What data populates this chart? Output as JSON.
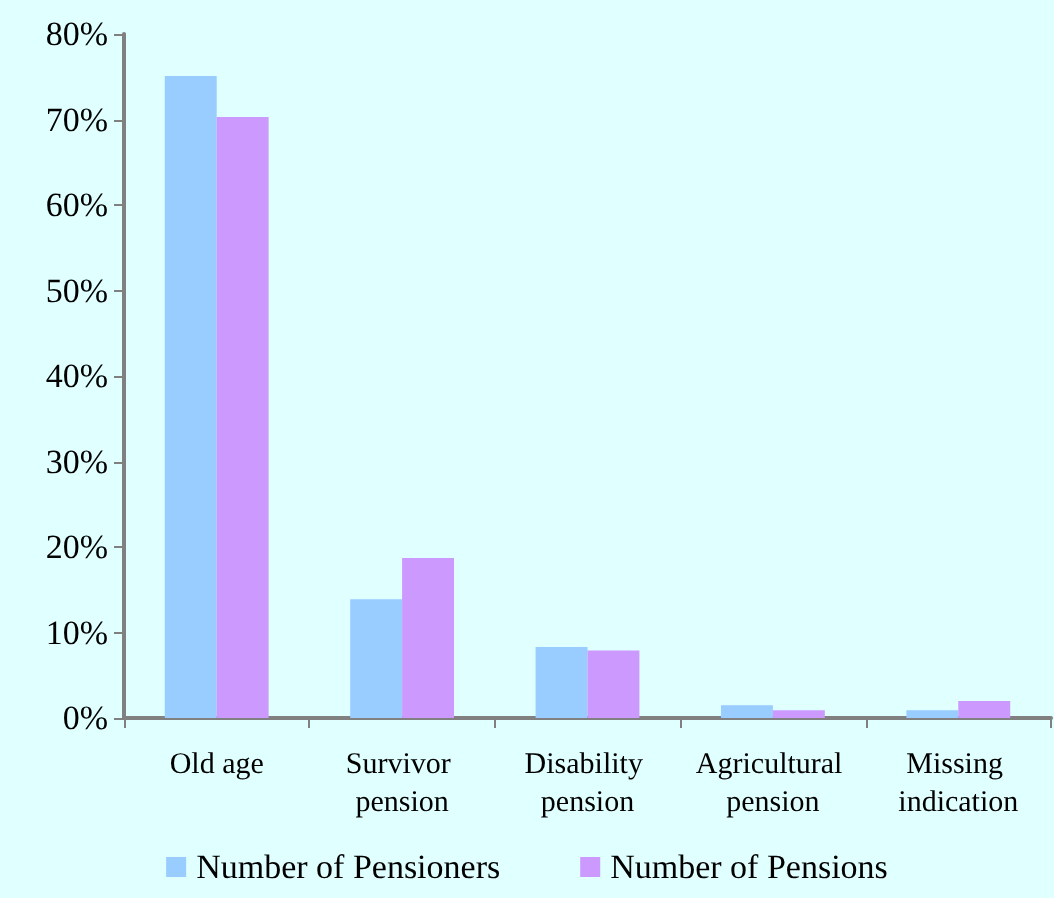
{
  "chart_data": {
    "type": "bar",
    "categories": [
      "Old age",
      "Survivor pension",
      "Disability pension",
      "Agricultural pension",
      "Missing indication"
    ],
    "series": [
      {
        "name": "Number of Pensioners",
        "color": "#99ccff",
        "values": [
          75.1,
          13.9,
          8.3,
          1.5,
          0.9
        ]
      },
      {
        "name": "Number of Pensions",
        "color": "#cc99ff",
        "values": [
          70.3,
          18.7,
          7.9,
          0.9,
          2.0
        ]
      }
    ],
    "ylim": [
      0,
      80
    ],
    "yticks": [
      {
        "value": 0,
        "label": "0%"
      },
      {
        "value": 10,
        "label": "10%"
      },
      {
        "value": 20,
        "label": "20%"
      },
      {
        "value": 30,
        "label": "30%"
      },
      {
        "value": 40,
        "label": "40%"
      },
      {
        "value": 50,
        "label": "50%"
      },
      {
        "value": 60,
        "label": "60%"
      },
      {
        "value": 70,
        "label": "70%"
      },
      {
        "value": 80,
        "label": "80%"
      }
    ],
    "grid": false,
    "legend": "bottom"
  }
}
